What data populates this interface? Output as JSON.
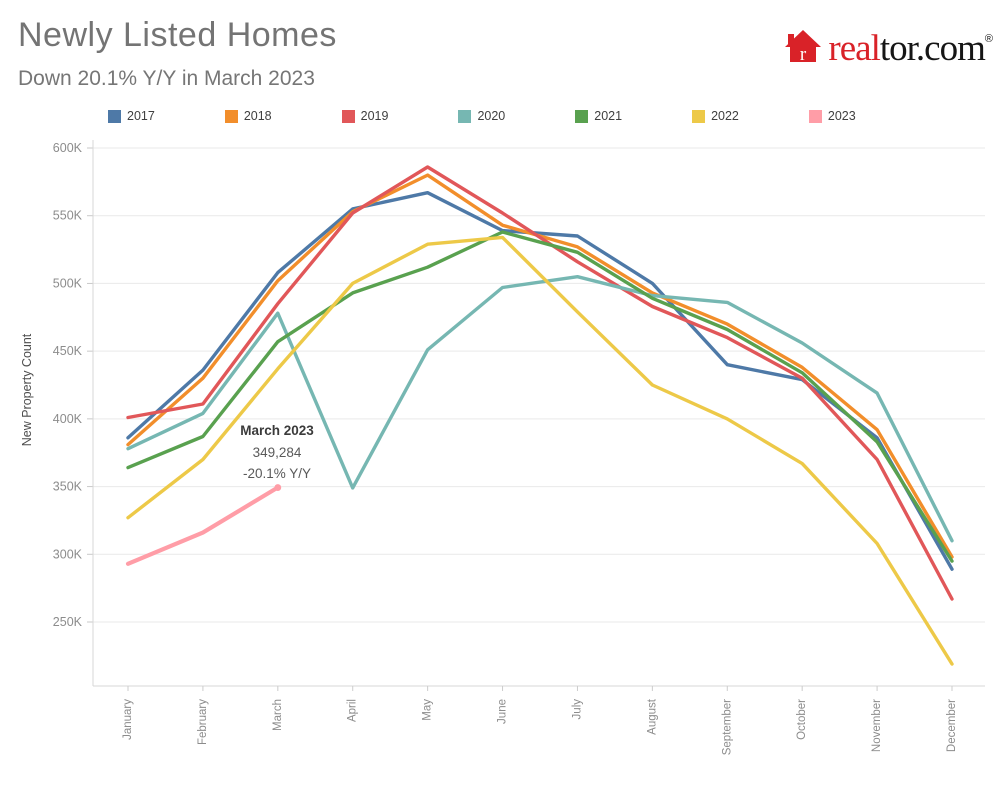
{
  "header": {
    "title": "Newly Listed Homes",
    "subtitle": "Down 20.1% Y/Y in March 2023"
  },
  "logo": {
    "icon": "realtor-house-icon",
    "icon_letter": "r",
    "text_red": "real",
    "text_dark": "tor.com",
    "registered": "®",
    "color_red": "#d92228",
    "color_dark": "#161616"
  },
  "legend": {
    "items": [
      {
        "label": "2017",
        "color": "#4e79a7"
      },
      {
        "label": "2018",
        "color": "#f28e2b"
      },
      {
        "label": "2019",
        "color": "#e15759"
      },
      {
        "label": "2020",
        "color": "#76b7b2"
      },
      {
        "label": "2021",
        "color": "#59a14f"
      },
      {
        "label": "2022",
        "color": "#edc948"
      },
      {
        "label": "2023",
        "color": "#ff9da7"
      }
    ]
  },
  "chart_data": {
    "type": "line",
    "x": [
      "January",
      "February",
      "March",
      "April",
      "May",
      "June",
      "July",
      "August",
      "September",
      "October",
      "November",
      "December"
    ],
    "ylabel": "New Property Count",
    "unit": "thousands",
    "ylim": [
      200,
      620
    ],
    "grid": true,
    "legend_position": "top",
    "yticks": [
      {
        "value": 250,
        "label": "250K"
      },
      {
        "value": 300,
        "label": "300K"
      },
      {
        "value": 350,
        "label": "350K"
      },
      {
        "value": 400,
        "label": "400K"
      },
      {
        "value": 450,
        "label": "450K"
      },
      {
        "value": 500,
        "label": "500K"
      },
      {
        "value": 550,
        "label": "550K"
      },
      {
        "value": 600,
        "label": "600K"
      }
    ],
    "series": [
      {
        "name": "2017",
        "color": "#4e79a7",
        "values": [
          386,
          436,
          508,
          555,
          567,
          539,
          535,
          500,
          440,
          429,
          386,
          289
        ]
      },
      {
        "name": "2018",
        "color": "#f28e2b",
        "values": [
          381,
          430,
          502,
          553,
          580,
          543,
          527,
          493,
          470,
          438,
          392,
          298
        ]
      },
      {
        "name": "2019",
        "color": "#e15759",
        "values": [
          401,
          411,
          485,
          552,
          586,
          552,
          516,
          483,
          460,
          430,
          370,
          267
        ]
      },
      {
        "name": "2020",
        "color": "#76b7b2",
        "values": [
          378,
          404,
          478,
          349,
          451,
          497,
          505,
          491,
          486,
          456,
          419,
          310
        ]
      },
      {
        "name": "2021",
        "color": "#59a14f",
        "values": [
          364,
          387,
          457,
          493,
          512,
          538,
          523,
          489,
          466,
          434,
          383,
          295
        ]
      },
      {
        "name": "2022",
        "color": "#edc948",
        "values": [
          327,
          370,
          437,
          500,
          529,
          534,
          479,
          425,
          400,
          367,
          308,
          219
        ]
      },
      {
        "name": "2023",
        "color": "#ff9da7",
        "values": [
          293,
          316,
          349.284
        ]
      }
    ],
    "annotation": {
      "title": "March 2023",
      "value": "349,284",
      "change": "-20.1% Y/Y"
    }
  }
}
